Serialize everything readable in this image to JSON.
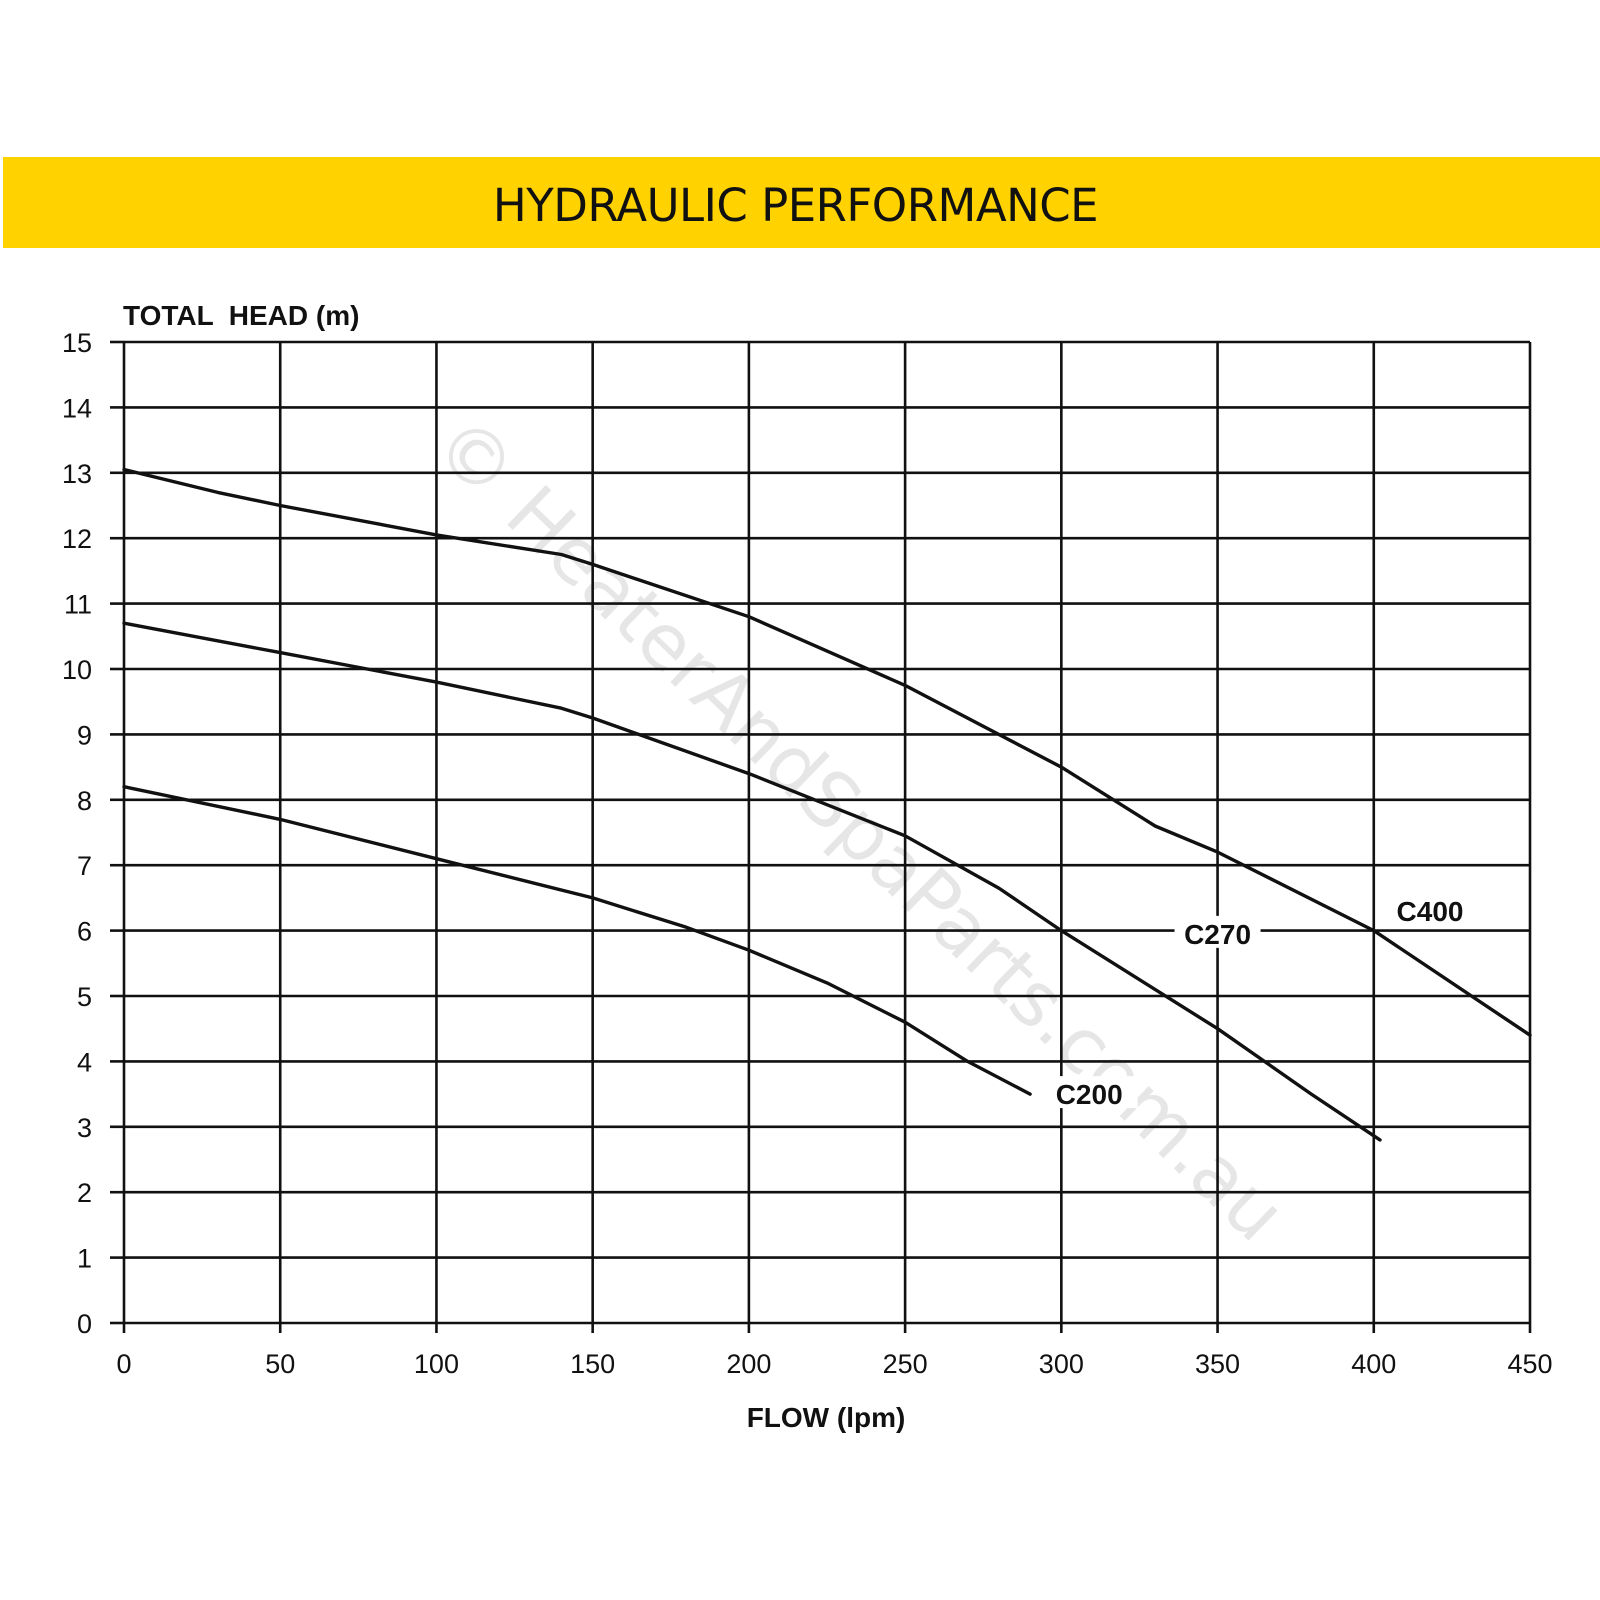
{
  "colors": {
    "banner": "#ffd200",
    "banner_text": "#111111",
    "grid": "#111111",
    "curve": "#111111",
    "watermark": "#e6e6e6"
  },
  "header": {
    "title": "HYDRAULIC PERFORMANCE"
  },
  "watermark": "© HeaterAndSpaParts.com.au",
  "chart_data": {
    "type": "line",
    "title": "HYDRAULIC PERFORMANCE",
    "xlabel": "FLOW (lpm)",
    "ylabel": "TOTAL  HEAD (m)",
    "xlim": [
      0,
      450
    ],
    "ylim": [
      0,
      15
    ],
    "x_ticks": [
      0,
      50,
      100,
      150,
      200,
      250,
      300,
      350,
      400,
      450
    ],
    "y_ticks": [
      0,
      1,
      2,
      3,
      4,
      5,
      6,
      7,
      8,
      9,
      10,
      11,
      12,
      13,
      14,
      15
    ],
    "grid": true,
    "legend": "none",
    "series": [
      {
        "name": "C200",
        "points": [
          [
            0,
            8.2
          ],
          [
            50,
            7.7
          ],
          [
            100,
            7.1
          ],
          [
            150,
            6.5
          ],
          [
            180,
            6.05
          ],
          [
            200,
            5.7
          ],
          [
            225,
            5.2
          ],
          [
            250,
            4.6
          ],
          [
            270,
            4.0
          ],
          [
            290,
            3.5
          ]
        ]
      },
      {
        "name": "C270",
        "points": [
          [
            0,
            10.7
          ],
          [
            50,
            10.25
          ],
          [
            100,
            9.8
          ],
          [
            140,
            9.4
          ],
          [
            150,
            9.25
          ],
          [
            200,
            8.4
          ],
          [
            250,
            7.45
          ],
          [
            280,
            6.65
          ],
          [
            300,
            6.0
          ],
          [
            350,
            4.5
          ],
          [
            380,
            3.5
          ],
          [
            402,
            2.8
          ]
        ]
      },
      {
        "name": "C400",
        "points": [
          [
            0,
            13.05
          ],
          [
            30,
            12.7
          ],
          [
            50,
            12.5
          ],
          [
            100,
            12.05
          ],
          [
            140,
            11.75
          ],
          [
            150,
            11.6
          ],
          [
            200,
            10.8
          ],
          [
            250,
            9.75
          ],
          [
            300,
            8.5
          ],
          [
            330,
            7.6
          ],
          [
            350,
            7.2
          ],
          [
            400,
            6.0
          ],
          [
            450,
            4.4
          ]
        ]
      }
    ],
    "annotations": [
      "C200",
      "C270",
      "C400"
    ]
  }
}
